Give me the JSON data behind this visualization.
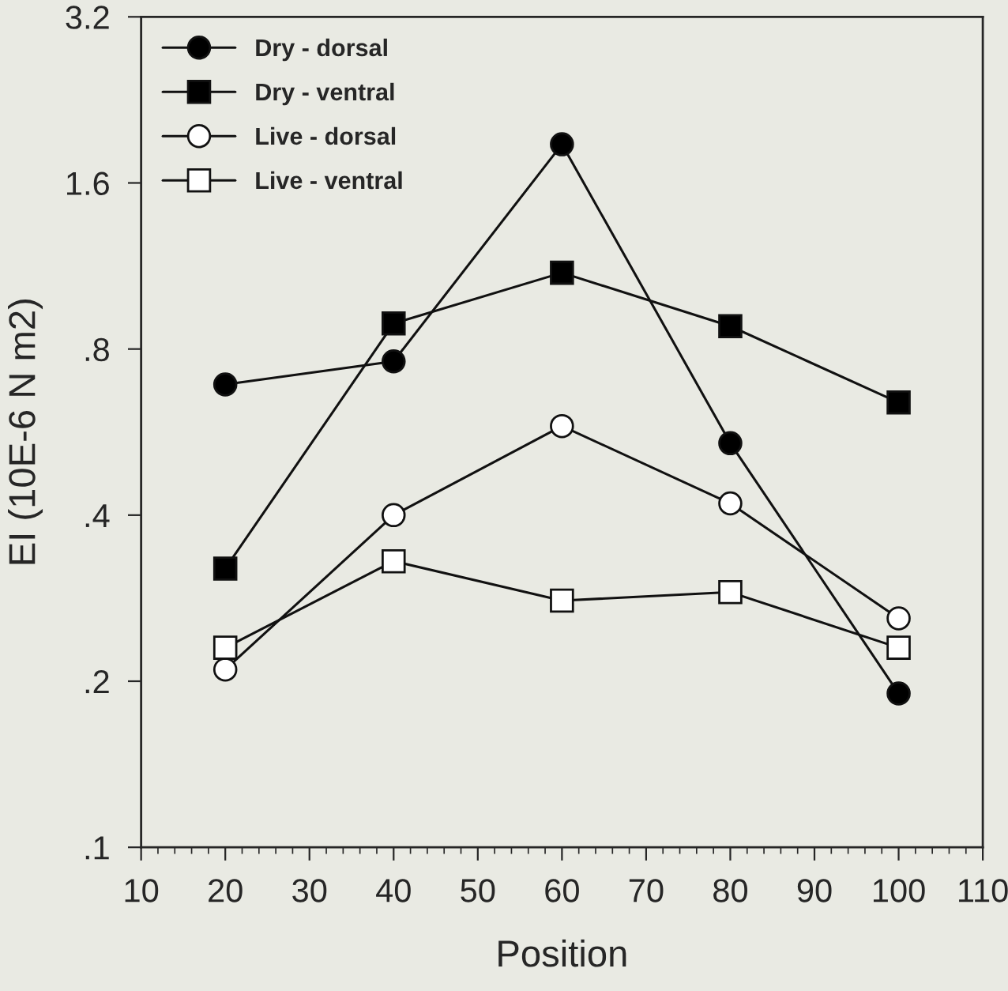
{
  "chart_data": {
    "type": "line",
    "xlabel": "Position",
    "ylabel": "EI (10E-6 N m2)",
    "x": [
      20,
      40,
      60,
      80,
      100
    ],
    "series": [
      {
        "name": "Dry - dorsal",
        "color": "#000000",
        "marker": "circle",
        "values": [
          0.69,
          0.76,
          1.88,
          0.54,
          0.19
        ]
      },
      {
        "name": "Dry - ventral",
        "color": "#000000",
        "marker": "square",
        "values": [
          0.32,
          0.89,
          1.1,
          0.88,
          0.64
        ]
      },
      {
        "name": "Live - dorsal",
        "color": "#ffffff",
        "marker": "circle",
        "values": [
          0.21,
          0.4,
          0.58,
          0.42,
          0.26
        ]
      },
      {
        "name": "Live - ventral",
        "color": "#ffffff",
        "marker": "square",
        "values": [
          0.23,
          0.33,
          0.28,
          0.29,
          0.23
        ]
      }
    ],
    "log": "y",
    "xlim": [
      10,
      110
    ],
    "xticks": [
      10,
      20,
      30,
      40,
      50,
      60,
      70,
      80,
      90,
      100,
      110
    ],
    "ylim": [
      0.1,
      3.2
    ],
    "yticks": [
      {
        "value": 0.1,
        "label": ".1"
      },
      {
        "value": 0.2,
        "label": ".2"
      },
      {
        "value": 0.4,
        "label": ".4"
      },
      {
        "value": 0.8,
        "label": ".8"
      },
      {
        "value": 1.6,
        "label": "1.6"
      },
      {
        "value": 3.2,
        "label": "3.2"
      }
    ],
    "grid": false,
    "legend": "top left",
    "line_style": "solid"
  }
}
